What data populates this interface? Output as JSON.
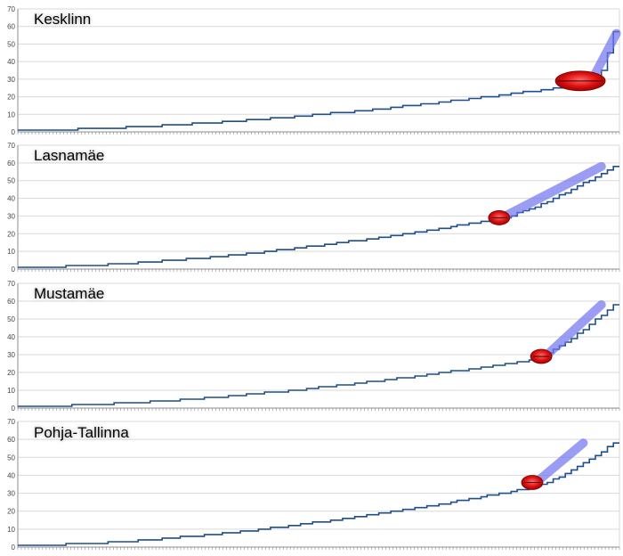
{
  "colors": {
    "line": "#1f4e8c",
    "grid": "#d9d9d9",
    "axis": "#8c8c8c",
    "tick_text": "#444444",
    "highlight_blue": "#6f73ee",
    "highlight_red": "#e01010",
    "background": "#ffffff"
  },
  "chart_data": [
    {
      "type": "line",
      "title": "Kesklinn",
      "ylim": [
        0,
        70
      ],
      "yticks": [
        0,
        10,
        20,
        30,
        40,
        50,
        60,
        70
      ],
      "grid": true,
      "x_count": 100,
      "shape": {
        "mid": 28,
        "plateau_end": 0.97,
        "end": 57
      },
      "highlights": {
        "red_ellipse": {
          "x_frac": 0.935,
          "y": 29
        },
        "blue_band": {
          "from_x_frac": 0.955,
          "from_y": 30,
          "to_x_frac": 0.995,
          "to_y": 56
        }
      }
    },
    {
      "type": "line",
      "title": "Lasnamäe",
      "ylim": [
        0,
        70
      ],
      "yticks": [
        0,
        10,
        20,
        30,
        40,
        50,
        60,
        70
      ],
      "grid": true,
      "x_count": 100,
      "shape": {
        "mid": 28,
        "plateau_end": 0.8,
        "end": 58
      },
      "highlights": {
        "red_ellipse": {
          "x_frac": 0.8,
          "y": 29
        },
        "blue_band": {
          "from_x_frac": 0.81,
          "from_y": 30,
          "to_x_frac": 0.97,
          "to_y": 58
        }
      }
    },
    {
      "type": "line",
      "title": "Mustamäe",
      "ylim": [
        0,
        70
      ],
      "yticks": [
        0,
        10,
        20,
        30,
        40,
        50,
        60,
        70
      ],
      "grid": true,
      "x_count": 100,
      "shape": {
        "mid": 27,
        "plateau_end": 0.86,
        "end": 58
      },
      "highlights": {
        "red_ellipse": {
          "x_frac": 0.87,
          "y": 29
        },
        "blue_band": {
          "from_x_frac": 0.88,
          "from_y": 30,
          "to_x_frac": 0.97,
          "to_y": 58
        }
      }
    },
    {
      "type": "line",
      "title": "Pohja-Tallinna",
      "ylim": [
        0,
        70
      ],
      "yticks": [
        0,
        10,
        20,
        30,
        40,
        50,
        60,
        70
      ],
      "grid": true,
      "x_count": 100,
      "shape": {
        "mid": 33,
        "plateau_end": 0.86,
        "end": 58
      },
      "highlights": {
        "red_ellipse": {
          "x_frac": 0.855,
          "y": 36
        },
        "blue_band": {
          "from_x_frac": 0.865,
          "from_y": 37,
          "to_x_frac": 0.94,
          "to_y": 58
        }
      }
    }
  ]
}
